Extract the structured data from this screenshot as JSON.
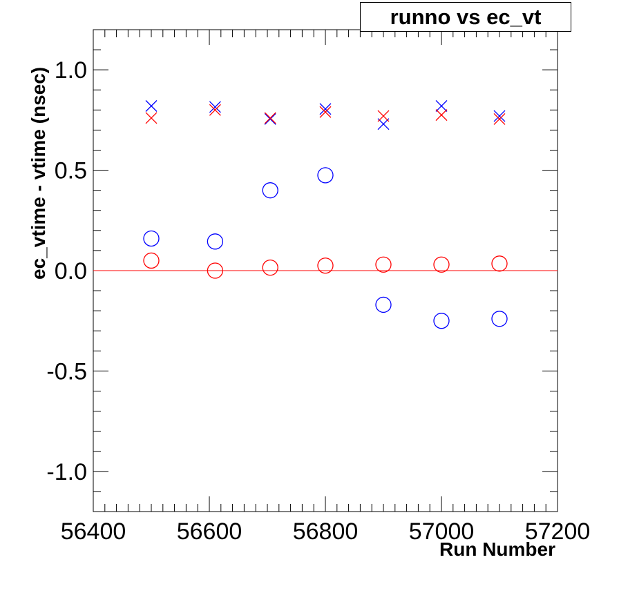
{
  "chart_data": {
    "type": "scatter",
    "title": "runno vs ec_vt",
    "xlabel": "Run Number",
    "ylabel": "ec_vtime - vtime (nsec)",
    "xlim": [
      56400,
      57200
    ],
    "ylim": [
      -1.2,
      1.2
    ],
    "xticks": [
      "56400",
      "56600",
      "56800",
      "57000",
      "57200"
    ],
    "yticks": [
      "-1.0",
      "-0.5",
      "0.0",
      "0.5",
      "1.0"
    ],
    "grid": false,
    "reference_line": {
      "y": 0.0,
      "color": "#ff0000"
    },
    "series": [
      {
        "marker": "circle",
        "color": "#0000ff",
        "x": [
          56500,
          56610,
          56705,
          56800,
          56900,
          57000,
          57100
        ],
        "y": [
          0.16,
          0.145,
          0.4,
          0.475,
          -0.17,
          -0.25,
          -0.24
        ]
      },
      {
        "marker": "circle",
        "color": "#ff0000",
        "x": [
          56500,
          56610,
          56705,
          56800,
          56900,
          57000,
          57100
        ],
        "y": [
          0.05,
          0.0,
          0.015,
          0.025,
          0.03,
          0.03,
          0.035
        ]
      },
      {
        "marker": "cross",
        "color": "#0000ff",
        "x": [
          56500,
          56610,
          56705,
          56800,
          56900,
          57000,
          57100
        ],
        "y": [
          0.82,
          0.815,
          0.755,
          0.805,
          0.73,
          0.82,
          0.77
        ]
      },
      {
        "marker": "cross",
        "color": "#ff0000",
        "x": [
          56500,
          56610,
          56705,
          56800,
          56900,
          57000,
          57100
        ],
        "y": [
          0.76,
          0.8,
          0.76,
          0.79,
          0.77,
          0.775,
          0.755
        ]
      }
    ]
  }
}
